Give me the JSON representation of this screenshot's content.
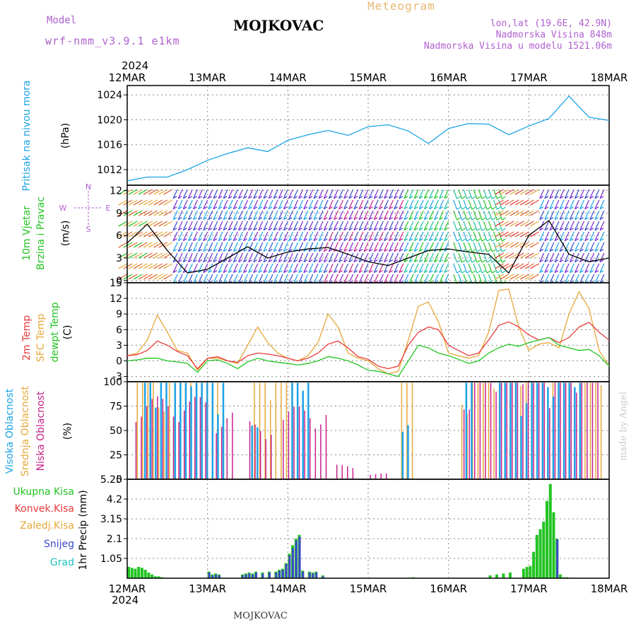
{
  "header": {
    "model_label": "Model",
    "model_name": "wrf-nmm_v3.9.1 e1km",
    "station": "MOJKOVAC",
    "product": "Meteogram",
    "lonlat": "lon,lat (19.6E, 42.9N)",
    "elevation": "Nadmorska Visina 848m",
    "model_elevation": "Nadmorska Visina u modelu 1521.06m",
    "footer_station": "MOJKOVAC",
    "watermark": "made by Angel",
    "year": "2024"
  },
  "colors": {
    "pressure": "#1ca3e6",
    "temp2m": "#e83a3a",
    "sfc": "#e6a83a",
    "dew": "#22c422",
    "high_cloud": "#1ca3e6",
    "mid_cloud": "#e6a83a",
    "low_cloud": "#c8208c",
    "total_precip": "#22c422",
    "conv_precip": "#e83a3a",
    "snow": "#3a4ac8",
    "wind_label": "#22c422",
    "compass": "#b060d0"
  },
  "time_axis": {
    "days": [
      "12MAR",
      "13MAR",
      "14MAR",
      "15MAR",
      "16MAR",
      "17MAR",
      "18MAR"
    ]
  },
  "chart_data": [
    {
      "type": "line",
      "name": "pressure",
      "ylabel_lines": [
        "Pritisak na nivou mora"
      ],
      "unit": "(hPa)",
      "yticks": [
        1012,
        1016,
        1020,
        1024
      ],
      "ylim": [
        1009.5,
        1025.5
      ],
      "x": [
        0,
        6,
        12,
        18,
        24,
        30,
        36,
        42,
        48,
        54,
        60,
        66,
        72,
        78,
        84,
        90,
        96,
        102,
        108,
        114,
        120,
        126,
        132,
        138,
        144
      ],
      "series": [
        {
          "values": [
            1010.2,
            1010.8,
            1010.8,
            1012.0,
            1013.5,
            1014.6,
            1015.5,
            1014.9,
            1016.7,
            1017.6,
            1018.3,
            1017.5,
            1018.9,
            1019.2,
            1018.2,
            1016.2,
            1018.6,
            1019.4,
            1019.3,
            1017.6,
            1019.0,
            1020.2,
            1023.8,
            1020.4,
            1019.9
          ]
        }
      ],
      "grid": true
    },
    {
      "type": "line",
      "name": "wind",
      "ylabel_lines": [
        "10m Vjetar",
        "Brzina i Pravac"
      ],
      "unit": "(m/s)",
      "compass": [
        "N",
        "E",
        "S",
        "W"
      ],
      "yticks": [
        0,
        3,
        6,
        9,
        12
      ],
      "ylim": [
        -0.3,
        12.7
      ],
      "x": [
        0,
        6,
        12,
        18,
        24,
        30,
        36,
        42,
        48,
        54,
        60,
        66,
        72,
        78,
        84,
        90,
        96,
        102,
        108,
        114,
        120,
        126,
        132,
        138,
        144
      ],
      "series": [
        {
          "values": [
            5.0,
            7.5,
            4.0,
            1.0,
            1.5,
            3.0,
            4.5,
            3.0,
            3.8,
            4.2,
            4.4,
            3.5,
            2.5,
            2.0,
            3.0,
            4.0,
            4.2,
            3.8,
            3.5,
            1.0,
            6.0,
            8.0,
            3.5,
            2.5,
            3.0
          ]
        }
      ],
      "grid": true
    },
    {
      "type": "line",
      "name": "temperature",
      "ylabel_lines": [
        "2m Temp",
        "SFC Temp",
        "dewpt Temp"
      ],
      "unit": "(C)",
      "yticks": [
        -3,
        0,
        3,
        6,
        9,
        12,
        15
      ],
      "ylim": [
        -4,
        15
      ],
      "x": [
        0,
        3,
        6,
        9,
        12,
        15,
        18,
        21,
        24,
        27,
        30,
        33,
        36,
        39,
        42,
        45,
        48,
        51,
        54,
        57,
        60,
        63,
        66,
        69,
        72,
        75,
        78,
        81,
        84,
        87,
        90,
        93,
        96,
        99,
        102,
        105,
        108,
        111,
        114,
        117,
        120,
        123,
        126,
        129,
        132,
        135,
        138,
        141,
        144
      ],
      "series": [
        {
          "values": [
            1.0,
            1.5,
            4.0,
            8.8,
            5.5,
            2.0,
            1.5,
            -1.8,
            0.5,
            0.5,
            0.0,
            -0.5,
            3.0,
            6.5,
            3.5,
            1.5,
            0.5,
            0.0,
            1.0,
            3.5,
            9.0,
            6.5,
            1.5,
            0.5,
            0.0,
            -1.5,
            -2.5,
            -2.0,
            4.0,
            10.5,
            11.3,
            7.5,
            1.5,
            1.0,
            0.5,
            1.0,
            5.5,
            13.5,
            13.8,
            6.5,
            2.0,
            3.2,
            3.5,
            2.5,
            9.0,
            13.3,
            10.0,
            2.0,
            -1.0
          ]
        },
        {
          "values": [
            1.0,
            1.2,
            2.0,
            3.8,
            3.0,
            1.8,
            1.0,
            -1.5,
            0.5,
            0.8,
            0.0,
            -0.3,
            1.0,
            1.5,
            1.3,
            1.0,
            0.5,
            0.0,
            0.5,
            1.5,
            3.2,
            3.8,
            2.5,
            0.8,
            0.3,
            -1.0,
            -1.5,
            -1.0,
            3.0,
            5.5,
            6.5,
            6.0,
            3.0,
            2.0,
            1.0,
            1.5,
            4.0,
            6.8,
            7.5,
            6.5,
            5.0,
            4.0,
            4.5,
            3.5,
            4.5,
            6.5,
            7.4,
            5.5,
            4.0
          ]
        },
        {
          "values": [
            0.0,
            0.2,
            0.5,
            0.5,
            0.0,
            -0.2,
            -0.5,
            -2.2,
            0.0,
            0.2,
            -0.5,
            -1.5,
            -0.2,
            0.5,
            0.0,
            -0.3,
            -0.5,
            -0.8,
            -0.5,
            0.0,
            0.8,
            0.5,
            0.0,
            -0.8,
            -1.8,
            -2.0,
            -2.5,
            -3.0,
            0.0,
            3.0,
            2.5,
            1.5,
            1.0,
            0.3,
            -0.5,
            0.0,
            1.5,
            2.5,
            3.2,
            2.8,
            3.5,
            4.0,
            4.5,
            3.0,
            2.5,
            2.0,
            2.2,
            1.0,
            -1.0
          ]
        }
      ],
      "grid": true
    },
    {
      "type": "bar",
      "name": "cloud",
      "ylabel_lines": [
        "Visoka Oblacnost",
        "Srednja Oblacnost",
        "Niska Oblacnost"
      ],
      "unit": "(%)",
      "yticks": [
        0,
        25,
        50,
        75,
        100
      ],
      "ylim": [
        0,
        100
      ],
      "x_ranges": {
        "high": [
          [
            5,
            12,
            99
          ],
          [
            14,
            30,
            99
          ],
          [
            37,
            40,
            55
          ],
          [
            49,
            54,
            99
          ],
          [
            82,
            85,
            60
          ],
          [
            101,
            104,
            99
          ],
          [
            111,
            135,
            99
          ]
        ],
        "mid": [
          [
            3,
            28,
            99
          ],
          [
            38,
            50,
            99
          ],
          [
            82,
            86,
            99
          ],
          [
            100,
            143,
            99
          ]
        ],
        "low": [
          [
            2,
            24,
            85
          ],
          [
            26,
            32,
            70
          ],
          [
            36,
            44,
            60
          ],
          [
            46,
            60,
            75
          ],
          [
            62,
            68,
            15
          ],
          [
            72,
            78,
            6
          ],
          [
            100,
            141,
            99
          ]
        ]
      },
      "grid": true
    },
    {
      "type": "bar",
      "name": "precip",
      "ylabel_lines": [
        "Ukupna Kisa",
        "Konvek.Kisa",
        "Zaledj.Kisa",
        "Snijeg",
        "Grad"
      ],
      "unit": "1hr Precip (mm)",
      "yticks": [
        1.05,
        2.1,
        3.15,
        4.2,
        5.25
      ],
      "ylim": [
        0,
        5.25
      ],
      "x": [
        0,
        1,
        2,
        3,
        4,
        5,
        6,
        7,
        8,
        9,
        10,
        24,
        25,
        26,
        27,
        34,
        35,
        36,
        37,
        38,
        40,
        42,
        44,
        45,
        46,
        47,
        48,
        49,
        50,
        51,
        52,
        54,
        55,
        56,
        58,
        85,
        108,
        110,
        112,
        114,
        118,
        119,
        120,
        121,
        122,
        123,
        124,
        125,
        126,
        127,
        128,
        129,
        130,
        131
      ],
      "series": [
        {
          "name": "total",
          "values": [
            0.6,
            0.55,
            0.5,
            0.6,
            0.55,
            0.45,
            0.3,
            0.2,
            0.1,
            0.1,
            0.05,
            0.35,
            0.2,
            0.25,
            0.2,
            0.2,
            0.25,
            0.3,
            0.25,
            0.35,
            0.3,
            0.35,
            0.35,
            0.45,
            0.5,
            0.8,
            1.3,
            1.75,
            2.1,
            2.3,
            0.4,
            0.35,
            0.3,
            0.35,
            0.15,
            0.05,
            0.15,
            0.2,
            0.25,
            0.3,
            0.5,
            0.6,
            0.65,
            1.4,
            2.3,
            2.6,
            3.0,
            4.1,
            5.0,
            3.5,
            2.1,
            0.2,
            0.05,
            0.05
          ]
        },
        {
          "name": "snow",
          "values": [
            0.0,
            0.0,
            0.0,
            0.0,
            0.0,
            0.0,
            0.0,
            0.0,
            0.0,
            0.0,
            0.0,
            0.3,
            0.15,
            0.2,
            0.15,
            0.15,
            0.2,
            0.25,
            0.2,
            0.3,
            0.25,
            0.3,
            0.3,
            0.4,
            0.45,
            0.75,
            1.2,
            1.6,
            2.0,
            2.2,
            0.35,
            0.3,
            0.25,
            0.3,
            0.1,
            0.0,
            0.0,
            0.0,
            0.0,
            0.0,
            0.0,
            0.0,
            0.0,
            0.0,
            0.0,
            0.0,
            0.0,
            0.0,
            0.0,
            0.0,
            2.05,
            0.0,
            0.0,
            0.0
          ]
        }
      ],
      "grid": true
    }
  ]
}
